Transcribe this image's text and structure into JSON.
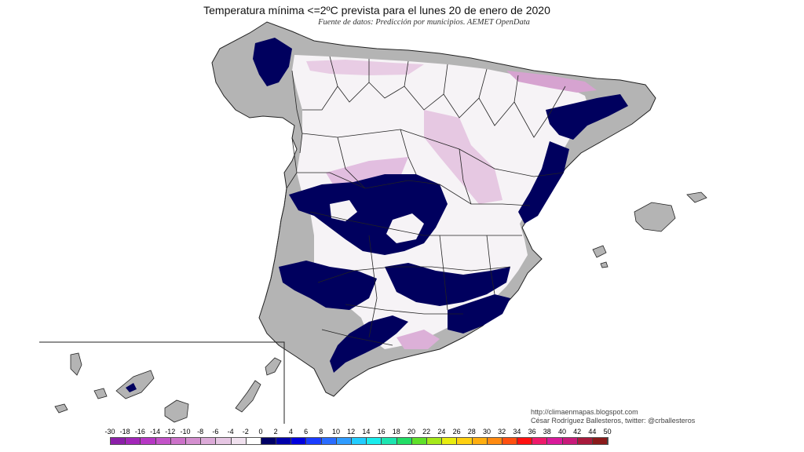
{
  "title": "Temperatura mínima <=2ºC prevista para el lunes 20 de enero de 2020",
  "subtitle": "Fuente de datos: Predicción por municipios. AEMET OpenData",
  "credits": {
    "blog": "http://climaenmapas.blogspot.com",
    "author": "César Rodríguez Ballesteros, twitter: @crballesteros"
  },
  "legend": {
    "ticks": [
      "-30",
      "-18",
      "-16",
      "-14",
      "-12",
      "-10",
      "-8",
      "-6",
      "-4",
      "-2",
      "0",
      "2",
      "4",
      "6",
      "8",
      "10",
      "12",
      "14",
      "16",
      "18",
      "20",
      "22",
      "24",
      "26",
      "28",
      "30",
      "32",
      "34",
      "36",
      "38",
      "40",
      "42",
      "44",
      "50"
    ],
    "colors": [
      "#8b1fa8",
      "#a226b8",
      "#b637c4",
      "#c353c8",
      "#cc72c9",
      "#d48fcf",
      "#dcaad8",
      "#e6c6e3",
      "#f0e0ee",
      "#ffffff",
      "#000066",
      "#0000aa",
      "#0000dd",
      "#1a3cff",
      "#2a6cff",
      "#2f9cff",
      "#22ccff",
      "#19ecec",
      "#1de4b0",
      "#22dd66",
      "#5fe02a",
      "#a6e81a",
      "#e8ec10",
      "#ffd010",
      "#ffae10",
      "#ff8a10",
      "#ff5010",
      "#ff1010",
      "#ee1a6a",
      "#d91a9a",
      "#c81a7a",
      "#a81a3c",
      "#8a1a1a"
    ],
    "colors_meaning": "swatch colors from -30 up to 50"
  },
  "map": {
    "land_color": "#b4b4b4",
    "outline_color": "#222222",
    "cold_color": "#00005e",
    "mild_color": "#f6f3f6"
  }
}
